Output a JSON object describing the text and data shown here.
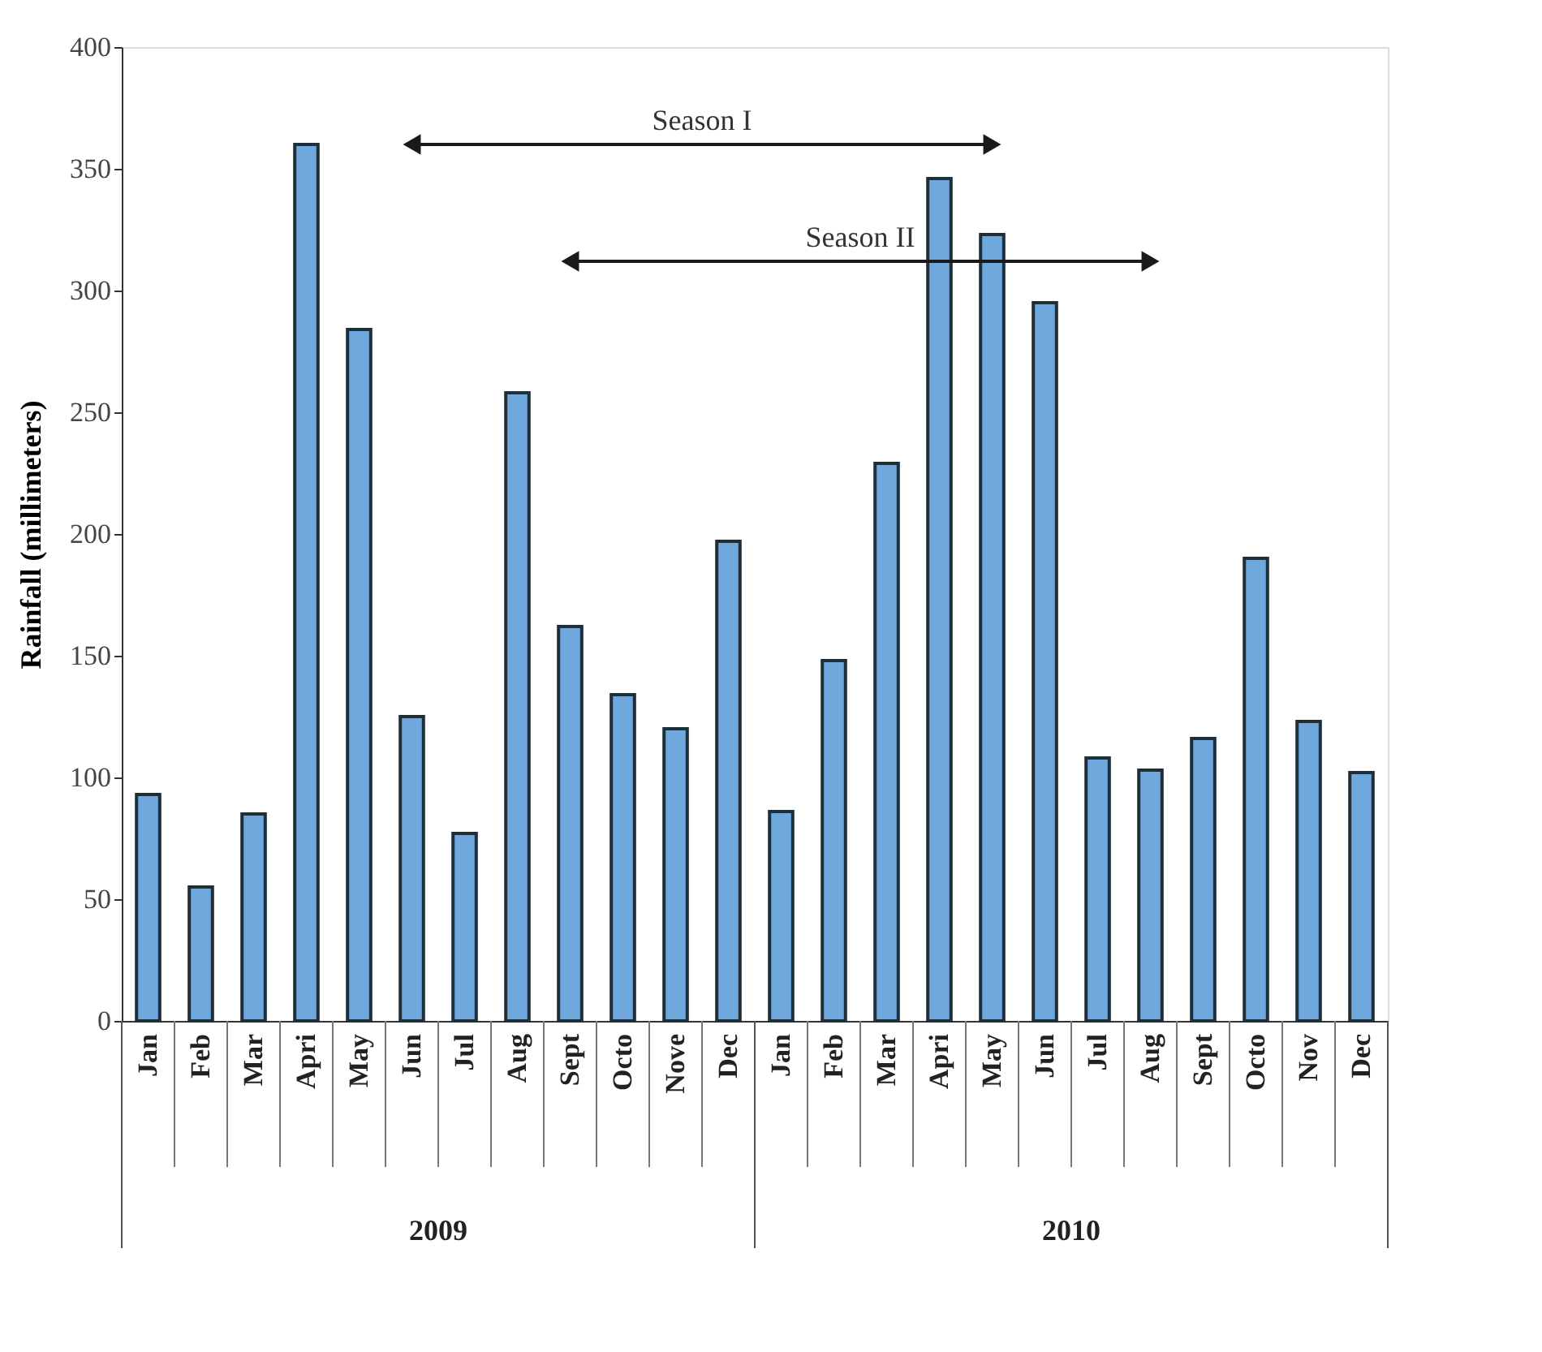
{
  "chart_data": {
    "type": "bar",
    "ylabel": "Rainfall (millimeters)",
    "categories": [
      "Jan",
      "Feb",
      "Mar",
      "Apri",
      "May",
      "Jun",
      "Jul",
      "Aug",
      "Sept",
      "Octo",
      "Nove",
      "Dec",
      "Jan",
      "Feb",
      "Mar",
      "Apri",
      "May",
      "Jun",
      "Jul",
      "Aug",
      "Sept",
      "Octo",
      "Nov",
      "Dec"
    ],
    "series": [
      {
        "color": "#6fa8dc",
        "values": [
          93,
          55,
          85,
          360,
          284,
          125,
          77,
          258,
          162,
          134,
          120,
          197,
          86,
          148,
          229,
          346,
          323,
          295,
          108,
          103,
          116,
          190,
          123,
          102
        ]
      },
      {
        "type": "line",
        "name": "Season I",
        "color": "#1a1a1a",
        "marker": "triangle",
        "values": [
          null,
          null,
          null,
          null,
          null,
          360,
          null,
          null,
          null,
          null,
          null,
          null,
          null,
          null,
          null,
          null,
          360,
          null,
          null,
          null,
          null,
          null,
          null,
          null
        ]
      },
      {
        "type": "line",
        "name": "Season II",
        "color": "#1a1a1a",
        "marker": "triangle",
        "values": [
          null,
          null,
          null,
          null,
          null,
          null,
          null,
          null,
          312,
          null,
          null,
          null,
          null,
          null,
          null,
          null,
          null,
          null,
          null,
          312,
          null,
          null,
          null,
          null
        ]
      }
    ],
    "annotations": [
      "2009",
      "2010"
    ],
    "ylim": [
      0,
      400
    ],
    "yticks": [
      0,
      50,
      100,
      150,
      200,
      250,
      300,
      350,
      400
    ],
    "grid": false
  }
}
